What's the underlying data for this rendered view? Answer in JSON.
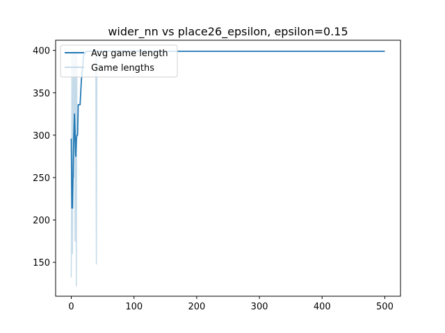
{
  "chart_data": {
    "type": "line",
    "title": "wider_nn vs place26_epsilon, epsilon=0.15",
    "xlabel": "",
    "ylabel": "",
    "xlim": [
      -25,
      525
    ],
    "ylim": [
      110,
      412
    ],
    "xticks": [
      0,
      100,
      200,
      300,
      400,
      500
    ],
    "yticks": [
      150,
      200,
      250,
      300,
      350,
      400
    ],
    "grid": false,
    "legend_position": "top-left",
    "series": [
      {
        "name": "Avg game length",
        "color": "#1f77b4",
        "x": [
          0,
          1,
          2,
          3,
          4,
          5,
          6,
          7,
          8,
          9,
          10,
          11,
          12,
          13,
          14,
          15,
          16,
          17,
          18,
          19,
          20,
          25,
          30,
          35,
          40,
          45,
          50,
          60,
          80,
          100,
          200,
          300,
          400,
          500
        ],
        "y": [
          296,
          214,
          214,
          265,
          300,
          325,
          300,
          275,
          295,
          300,
          300,
          336,
          336,
          336,
          336,
          350,
          365,
          372,
          380,
          390,
          395,
          399,
          399,
          399,
          399,
          399,
          399,
          399,
          399,
          399,
          399,
          399,
          399,
          399
        ]
      },
      {
        "name": "Game lengths",
        "color": "#c6dbe9",
        "x": [
          0,
          1,
          2,
          3,
          4,
          5,
          6,
          7,
          8,
          9,
          10,
          11,
          12,
          13,
          14,
          15,
          16,
          17,
          18,
          19,
          20,
          25,
          30,
          35,
          39,
          40,
          41,
          42,
          45,
          50,
          55,
          60,
          100,
          200,
          300,
          400,
          500
        ],
        "y": [
          132,
          399,
          160,
          399,
          250,
          399,
          175,
          399,
          122,
          399,
          399,
          399,
          399,
          399,
          399,
          399,
          399,
          399,
          399,
          399,
          399,
          399,
          399,
          399,
          399,
          148,
          399,
          399,
          399,
          399,
          399,
          399,
          399,
          399,
          399,
          399,
          399
        ]
      }
    ]
  }
}
